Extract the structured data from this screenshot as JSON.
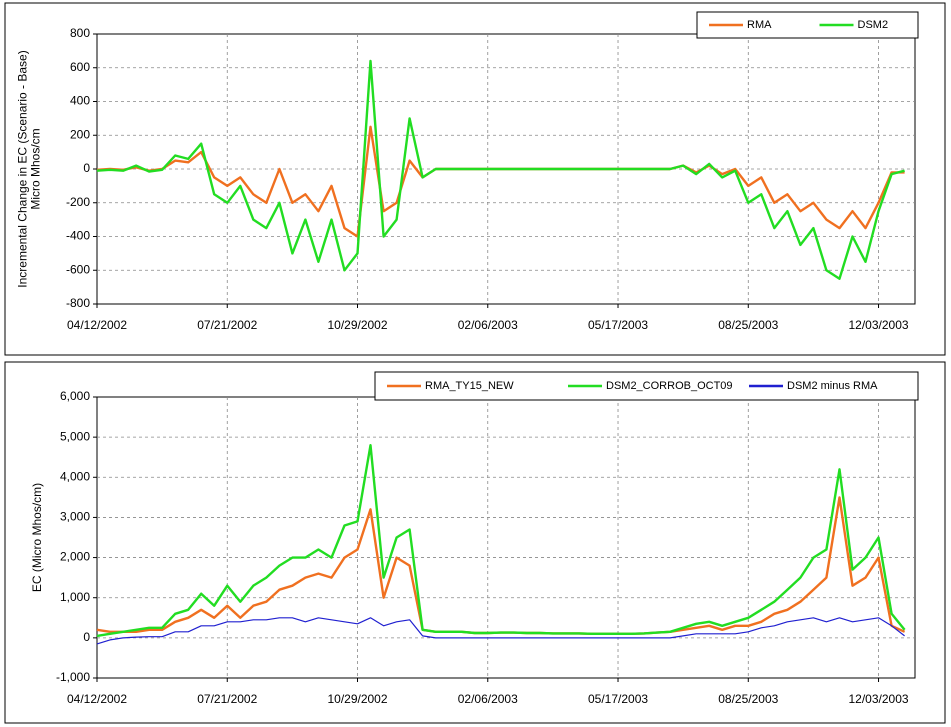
{
  "chart_data": [
    {
      "type": "line",
      "y_label": [
        "Incremental Change in EC (Scenario - Base)",
        "Micro Mhos/cm"
      ],
      "x": [
        "04/12/2002",
        "04/22/2002",
        "05/02/2002",
        "05/12/2002",
        "05/22/2002",
        "06/01/2002",
        "06/11/2002",
        "06/21/2002",
        "07/01/2002",
        "07/11/2002",
        "07/21/2002",
        "07/31/2002",
        "08/10/2002",
        "08/20/2002",
        "08/30/2002",
        "09/09/2002",
        "09/19/2002",
        "09/29/2002",
        "10/09/2002",
        "10/19/2002",
        "10/29/2002",
        "11/08/2002",
        "11/18/2002",
        "11/28/2002",
        "12/08/2002",
        "12/18/2002",
        "12/28/2002",
        "01/07/2003",
        "01/17/2003",
        "01/27/2003",
        "02/06/2003",
        "02/16/2003",
        "02/26/2003",
        "03/08/2003",
        "03/18/2003",
        "03/28/2003",
        "04/07/2003",
        "04/17/2003",
        "04/27/2003",
        "05/07/2003",
        "05/17/2003",
        "05/27/2003",
        "06/06/2003",
        "06/16/2003",
        "06/26/2003",
        "07/06/2003",
        "07/16/2003",
        "07/26/2003",
        "08/05/2003",
        "08/15/2003",
        "08/25/2003",
        "09/04/2003",
        "09/14/2003",
        "09/24/2003",
        "10/04/2003",
        "10/14/2003",
        "10/24/2003",
        "11/03/2003",
        "11/13/2003",
        "11/23/2003",
        "12/03/2003",
        "12/13/2003",
        "12/23/2003"
      ],
      "series": [
        {
          "name": "RMA",
          "color": "#f07020",
          "values": [
            -5,
            0,
            -5,
            10,
            -10,
            0,
            50,
            40,
            100,
            -50,
            -100,
            -50,
            -150,
            -200,
            0,
            -200,
            -150,
            -250,
            -100,
            -350,
            -400,
            250,
            -250,
            -200,
            50,
            -50,
            0,
            0,
            0,
            0,
            0,
            0,
            0,
            0,
            0,
            0,
            0,
            0,
            0,
            0,
            0,
            0,
            0,
            0,
            0,
            20,
            -20,
            20,
            -30,
            0,
            -100,
            -50,
            -200,
            -150,
            -250,
            -200,
            -300,
            -350,
            -250,
            -350,
            -200,
            -20,
            -20
          ]
        },
        {
          "name": "DSM2",
          "color": "#22dd22",
          "values": [
            -10,
            -5,
            -10,
            20,
            -15,
            -5,
            80,
            60,
            150,
            -150,
            -200,
            -100,
            -300,
            -350,
            -200,
            -500,
            -300,
            -550,
            -300,
            -600,
            -500,
            640,
            -400,
            -300,
            300,
            -50,
            0,
            0,
            0,
            0,
            0,
            0,
            0,
            0,
            0,
            0,
            0,
            0,
            0,
            0,
            0,
            0,
            0,
            0,
            0,
            20,
            -30,
            30,
            -50,
            -10,
            -200,
            -150,
            -350,
            -250,
            -450,
            -350,
            -600,
            -650,
            -400,
            -550,
            -250,
            -30,
            -10
          ]
        }
      ],
      "xlim": [
        "04/12/2002",
        "12/31/2003"
      ],
      "xticks": [
        "04/12/2002",
        "07/21/2002",
        "10/29/2002",
        "02/06/2003",
        "05/17/2003",
        "08/25/2003",
        "12/03/2003"
      ],
      "ylim": [
        -800,
        800
      ],
      "yticks": [
        800,
        600,
        400,
        200,
        0,
        -200,
        -400,
        -600,
        -800
      ],
      "grid": true,
      "legend": "top-right"
    },
    {
      "type": "line",
      "y_label": [
        "EC (Micro Mhos/cm)"
      ],
      "x": [
        "04/12/2002",
        "04/22/2002",
        "05/02/2002",
        "05/12/2002",
        "05/22/2002",
        "06/01/2002",
        "06/11/2002",
        "06/21/2002",
        "07/01/2002",
        "07/11/2002",
        "07/21/2002",
        "07/31/2002",
        "08/10/2002",
        "08/20/2002",
        "08/30/2002",
        "09/09/2002",
        "09/19/2002",
        "09/29/2002",
        "10/09/2002",
        "10/19/2002",
        "10/29/2002",
        "11/08/2002",
        "11/18/2002",
        "11/28/2002",
        "12/08/2002",
        "12/18/2002",
        "12/28/2002",
        "01/07/2003",
        "01/17/2003",
        "01/27/2003",
        "02/06/2003",
        "02/16/2003",
        "02/26/2003",
        "03/08/2003",
        "03/18/2003",
        "03/28/2003",
        "04/07/2003",
        "04/17/2003",
        "04/27/2003",
        "05/07/2003",
        "05/17/2003",
        "05/27/2003",
        "06/06/2003",
        "06/16/2003",
        "06/26/2003",
        "07/06/2003",
        "07/16/2003",
        "07/26/2003",
        "08/05/2003",
        "08/15/2003",
        "08/25/2003",
        "09/04/2003",
        "09/14/2003",
        "09/24/2003",
        "10/04/2003",
        "10/14/2003",
        "10/24/2003",
        "11/03/2003",
        "11/13/2003",
        "11/23/2003",
        "12/03/2003",
        "12/13/2003",
        "12/23/2003"
      ],
      "series": [
        {
          "name": "RMA_TY15_NEW",
          "color": "#f07020",
          "values": [
            200,
            150,
            150,
            150,
            200,
            200,
            400,
            500,
            700,
            500,
            800,
            500,
            800,
            900,
            1200,
            1300,
            1500,
            1600,
            1500,
            2000,
            2200,
            3200,
            1000,
            2000,
            1800,
            200,
            150,
            150,
            150,
            120,
            120,
            130,
            130,
            120,
            120,
            110,
            110,
            110,
            100,
            100,
            100,
            100,
            110,
            130,
            150,
            200,
            250,
            300,
            200,
            300,
            300,
            400,
            600,
            700,
            900,
            1200,
            1500,
            3500,
            1300,
            1500,
            2000,
            300,
            150
          ]
        },
        {
          "name": "DSM2_CORROB_OCT09",
          "color": "#22dd22",
          "values": [
            50,
            100,
            150,
            200,
            250,
            250,
            600,
            700,
            1100,
            800,
            1300,
            900,
            1300,
            1500,
            1800,
            2000,
            2000,
            2200,
            2000,
            2800,
            2900,
            4800,
            1500,
            2500,
            2700,
            200,
            150,
            150,
            150,
            120,
            120,
            130,
            130,
            120,
            120,
            110,
            110,
            110,
            100,
            100,
            100,
            100,
            110,
            130,
            150,
            250,
            350,
            400,
            300,
            400,
            500,
            700,
            900,
            1200,
            1500,
            2000,
            2200,
            4200,
            1700,
            2000,
            2500,
            600,
            200
          ]
        },
        {
          "name": "DSM2 minus RMA",
          "color": "#2020d0",
          "values": [
            -150,
            -50,
            0,
            20,
            30,
            30,
            150,
            150,
            300,
            300,
            400,
            400,
            450,
            450,
            500,
            500,
            400,
            500,
            450,
            400,
            350,
            500,
            300,
            400,
            450,
            50,
            0,
            0,
            0,
            0,
            0,
            0,
            0,
            0,
            0,
            0,
            0,
            0,
            0,
            0,
            0,
            0,
            0,
            0,
            0,
            50,
            100,
            100,
            100,
            100,
            150,
            250,
            300,
            400,
            450,
            500,
            400,
            500,
            400,
            450,
            500,
            300,
            50
          ]
        }
      ],
      "xlim": [
        "04/12/2002",
        "12/31/2003"
      ],
      "xticks": [
        "04/12/2002",
        "07/21/2002",
        "10/29/2002",
        "02/06/2003",
        "05/17/2003",
        "08/25/2003",
        "12/03/2003"
      ],
      "ylim": [
        -1000,
        6000
      ],
      "yticks": [
        {
          "value": 6000,
          "label": "6,000"
        },
        {
          "value": 5000,
          "label": "5,000"
        },
        {
          "value": 4000,
          "label": "4,000"
        },
        {
          "value": 3000,
          "label": "3,000"
        },
        {
          "value": 2000,
          "label": "2,000"
        },
        {
          "value": 1000,
          "label": "1,000"
        },
        0,
        {
          "value": -1000,
          "label": "-1,000"
        }
      ],
      "grid": true,
      "legend": "top-right"
    }
  ]
}
